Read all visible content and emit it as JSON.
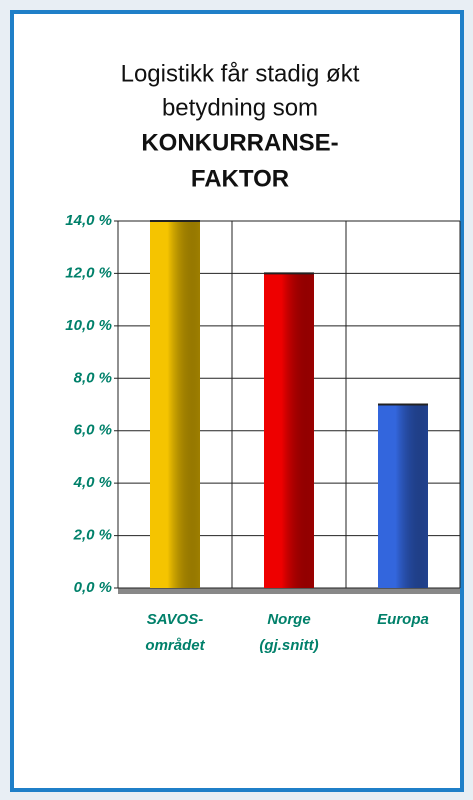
{
  "chart_data": {
    "type": "bar",
    "title": [
      "Logistikk får stadig økt",
      "betydning som",
      "KONKURRANSE-",
      "FAKTOR"
    ],
    "categories": [
      [
        "SAVOS-",
        "området"
      ],
      [
        "Norge",
        "(gj.snitt)"
      ],
      [
        "Europa"
      ]
    ],
    "values": [
      14,
      12,
      7
    ],
    "colors": [
      "#f5c400",
      "#ee0000",
      "#3366dd"
    ],
    "ylim": [
      0,
      14
    ],
    "yticks": [
      {
        "value": 0,
        "label": "0,0 %"
      },
      {
        "value": 2,
        "label": "2,0 %"
      },
      {
        "value": 4,
        "label": "4,0 %"
      },
      {
        "value": 6,
        "label": "6,0 %"
      },
      {
        "value": 8,
        "label": "8,0 %"
      },
      {
        "value": 10,
        "label": "10,0 %"
      },
      {
        "value": 12,
        "label": "12,0 %"
      },
      {
        "value": 14,
        "label": "14,0 %"
      }
    ],
    "grid": true
  }
}
